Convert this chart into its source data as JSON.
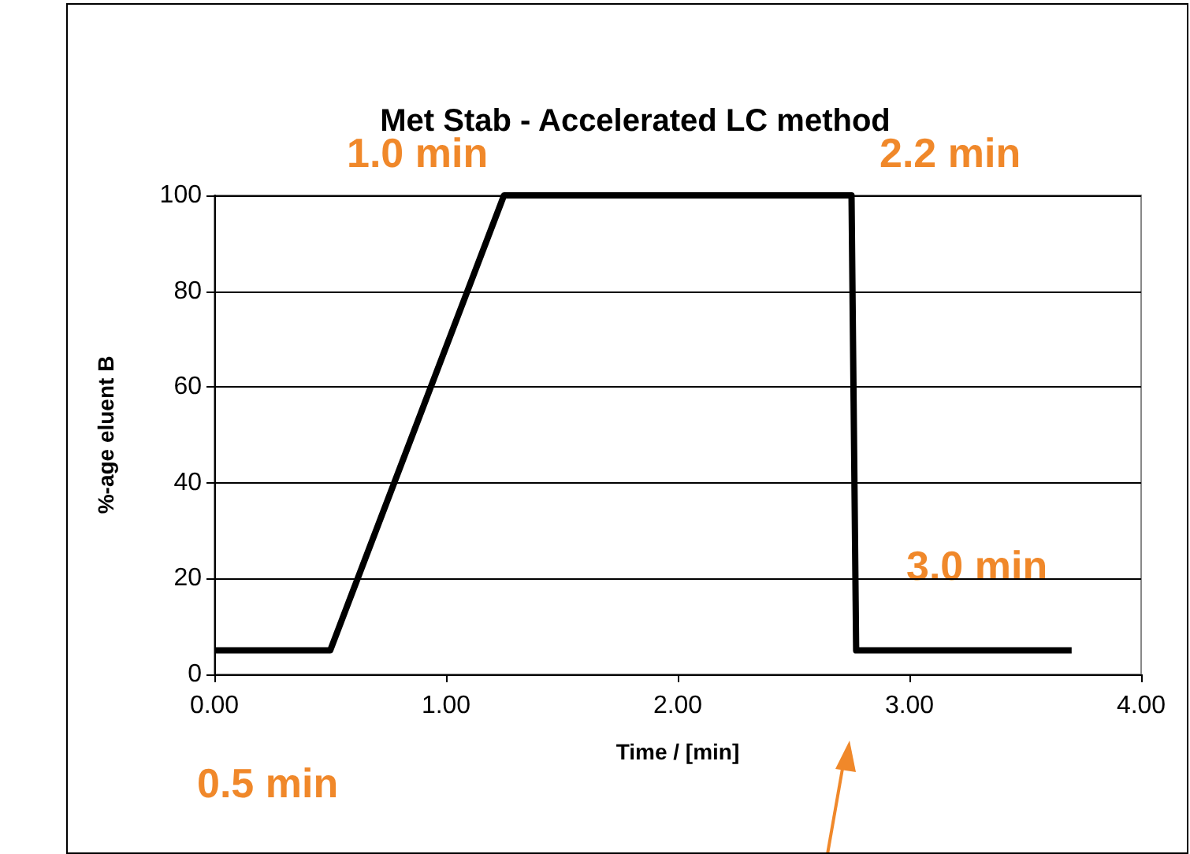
{
  "chart_data": {
    "type": "line",
    "title": "Met Stab - Accelerated LC method",
    "xlabel": "Time / [min]",
    "ylabel": "%-age eluent B",
    "x": [
      0,
      0.5,
      1.25,
      2.75,
      2.77,
      3.7
    ],
    "series": [
      {
        "color": "#000000",
        "values": [
          5,
          5,
          100,
          100,
          5,
          5
        ]
      }
    ],
    "xlim": [
      0,
      4
    ],
    "xticks": [
      {
        "value": 0,
        "label": "0.00"
      },
      {
        "value": 1,
        "label": "1.00"
      },
      {
        "value": 2,
        "label": "2.00"
      },
      {
        "value": 3,
        "label": "3.00"
      },
      {
        "value": 4,
        "label": "4.00"
      }
    ],
    "ylim": [
      0,
      100
    ],
    "yticks": [
      0,
      20,
      40,
      60,
      80,
      100
    ],
    "grid": "y",
    "marker": "none",
    "line_style": "solid",
    "annotations": [
      "1.0 min",
      "2.2 min",
      "3.0 min",
      "0.5 min"
    ]
  }
}
